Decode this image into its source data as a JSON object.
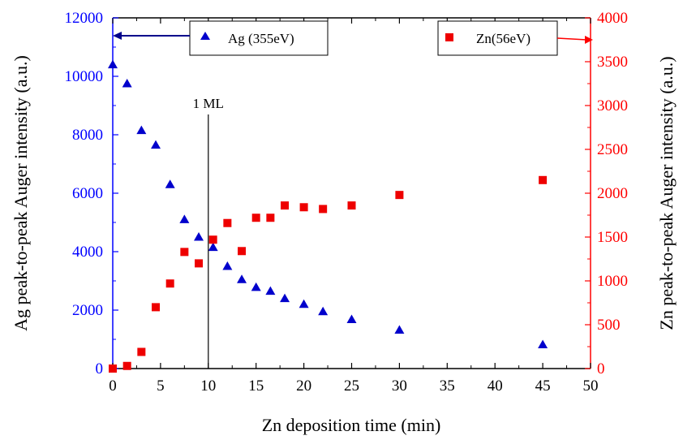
{
  "chart_data": {
    "type": "scatter",
    "title": "",
    "xlabel": "Zn deposition time (min)",
    "ylabel_left": "Ag peak-to-peak Auger intensity (a.u.)",
    "ylabel_right": "Zn peak-to-peak Auger intensity (a.u.)",
    "xlim": [
      0,
      50
    ],
    "ylim_left": [
      0,
      12000
    ],
    "ylim_right": [
      0,
      4000
    ],
    "x_ticks": [
      "0",
      "5",
      "10",
      "15",
      "20",
      "25",
      "30",
      "35",
      "40",
      "45",
      "50"
    ],
    "y_left_ticks": [
      "0",
      "2000",
      "4000",
      "6000",
      "8000",
      "10000",
      "12000"
    ],
    "y_right_ticks": [
      "0",
      "500",
      "1000",
      "1500",
      "2000",
      "2500",
      "3000",
      "3500",
      "4000"
    ],
    "grid": false,
    "legend_placement": "top",
    "annotation": {
      "label": "1 ML",
      "x": 10
    },
    "colors": {
      "left_axis": "#0000ff",
      "right_axis": "#ff0000",
      "ag_marker": "#0000cc",
      "zn_marker": "#ee0000"
    },
    "series": [
      {
        "name": "Ag (355eV)",
        "axis": "left",
        "marker": "triangle",
        "x": [
          0,
          1.5,
          3,
          4.5,
          6,
          7.5,
          9,
          10.5,
          12,
          13.5,
          15,
          16.5,
          18,
          20,
          22,
          25,
          30,
          45
        ],
        "y": [
          10400,
          9750,
          8150,
          7650,
          6300,
          5100,
          4500,
          4150,
          3500,
          3050,
          2780,
          2650,
          2400,
          2200,
          1950,
          1680,
          1320,
          820
        ]
      },
      {
        "name": "Zn(56eV)",
        "axis": "right",
        "marker": "square",
        "x": [
          0,
          1.5,
          3,
          4.5,
          6,
          7.5,
          9,
          10.5,
          12,
          13.5,
          15,
          16.5,
          18,
          20,
          22,
          25,
          30,
          45
        ],
        "y": [
          0,
          30,
          190,
          700,
          970,
          1330,
          1200,
          1470,
          1660,
          1340,
          1720,
          1720,
          1860,
          1840,
          1820,
          1860,
          1980,
          2150
        ]
      }
    ]
  }
}
